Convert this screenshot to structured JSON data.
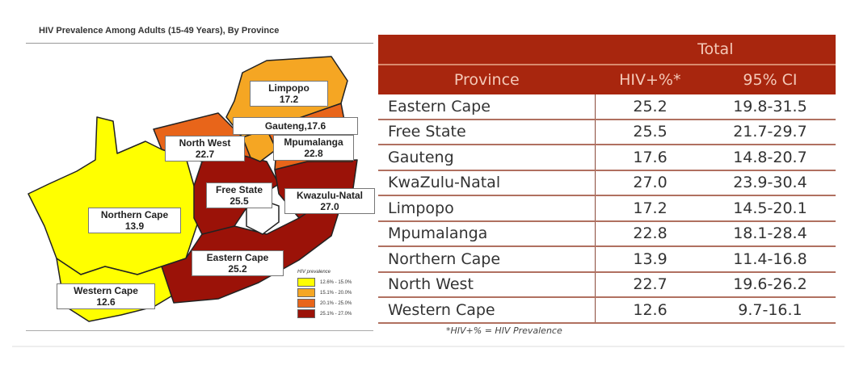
{
  "chart_data": [
    {
      "type": "choropleth-map",
      "title": "HIV Prevalence Among Adults (15-49 Years), By Province",
      "regions": [
        {
          "name": "Limpopo",
          "label": "Limpopo",
          "value": "17.2",
          "color": "#f5a623"
        },
        {
          "name": "Gauteng",
          "label": "Gauteng,17.6",
          "value": "17.6",
          "color": "#f5a623"
        },
        {
          "name": "North West",
          "label": "North West",
          "value": "22.7",
          "color": "#e8651a"
        },
        {
          "name": "Mpumalanga",
          "label": "Mpumalanga",
          "value": "22.8",
          "color": "#e8651a"
        },
        {
          "name": "Free State",
          "label": "Free State",
          "value": "25.5",
          "color": "#9b1208"
        },
        {
          "name": "KwaZulu-Natal",
          "label": "Kwazulu-Natal",
          "value": "27.0",
          "color": "#9b1208"
        },
        {
          "name": "Northern Cape",
          "label": "Northern Cape",
          "value": "13.9",
          "color": "#ffff00"
        },
        {
          "name": "Eastern Cape",
          "label": "Eastern Cape",
          "value": "25.2",
          "color": "#9b1208"
        },
        {
          "name": "Western Cape",
          "label": "Western Cape",
          "value": "12.6",
          "color": "#ffff00"
        }
      ],
      "legend": {
        "title": "HIV prevalence",
        "placement": "bottom-right",
        "items": [
          {
            "label": "12.6% - 15.0%",
            "color": "#ffff00"
          },
          {
            "label": "15.1% - 20.0%",
            "color": "#f5a623"
          },
          {
            "label": "20.1% - 25.0%",
            "color": "#e8651a"
          },
          {
            "label": "25.1% - 27.0%",
            "color": "#9b1208"
          }
        ]
      }
    },
    {
      "type": "table",
      "group_header": "Total",
      "columns": [
        "Province",
        "HIV+%*",
        "95% CI"
      ],
      "rows": [
        [
          "Eastern Cape",
          "25.2",
          "19.8-31.5"
        ],
        [
          "Free State",
          "25.5",
          "21.7-29.7"
        ],
        [
          "Gauteng",
          "17.6",
          "14.8-20.7"
        ],
        [
          "KwaZulu-Natal",
          "27.0",
          "23.9-30.4"
        ],
        [
          "Limpopo",
          "17.2",
          "14.5-20.1"
        ],
        [
          "Mpumalanga",
          "22.8",
          "18.1-28.4"
        ],
        [
          "Northern Cape",
          "13.9",
          "11.4-16.8"
        ],
        [
          "North West",
          "22.7",
          "19.6-26.2"
        ],
        [
          "Western Cape",
          "12.6",
          "9.7-16.1"
        ]
      ],
      "footnote": "*HIV+% = HIV Prevalence",
      "header_color": "#a8260e"
    }
  ]
}
